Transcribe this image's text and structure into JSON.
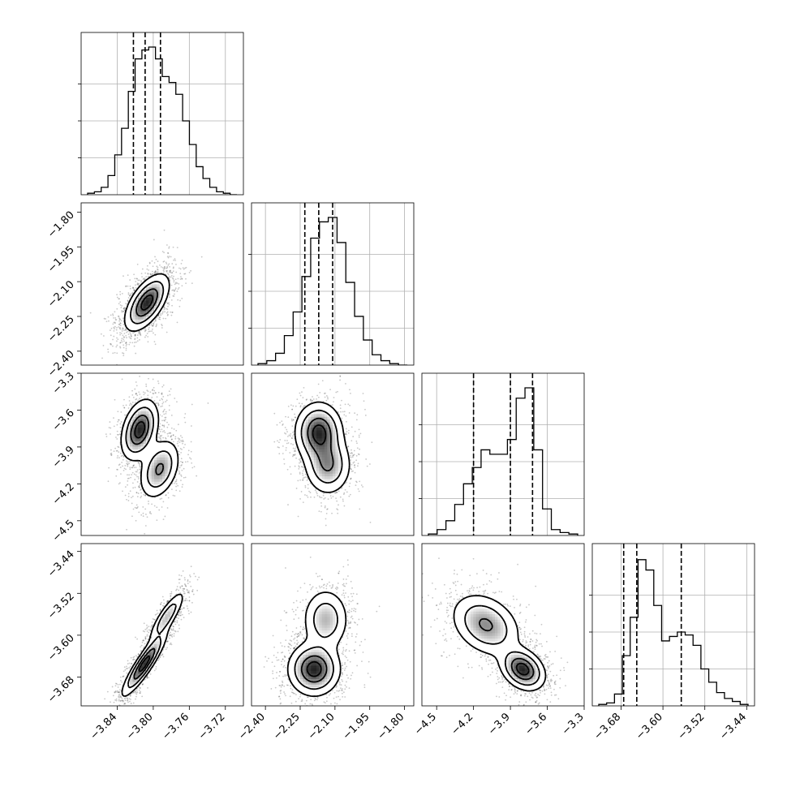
{
  "chart_data": {
    "type": "corner",
    "xlabel": "",
    "ylabel": "",
    "grid": true,
    "colors": {
      "points": "#000000",
      "density_max": "#000000",
      "lines": "#000000"
    },
    "parameters": [
      {
        "range": [
          -3.88,
          -3.7
        ],
        "ticks": [
          -3.84,
          -3.8,
          -3.76,
          -3.72
        ],
        "tick_labels": [
          "−3.84",
          "−3.80",
          "−3.76",
          "−3.72"
        ]
      },
      {
        "range": [
          -2.46,
          -1.76
        ],
        "ticks": [
          -2.4,
          -2.25,
          -2.1,
          -1.95,
          -1.8
        ],
        "tick_labels": [
          "−2.40",
          "−2.25",
          "−2.10",
          "−1.95",
          "−1.80"
        ]
      },
      {
        "range": [
          -4.62,
          -3.3
        ],
        "ticks": [
          -4.5,
          -4.2,
          -3.9,
          -3.6,
          -3.3
        ],
        "tick_labels": [
          "−4.5",
          "−4.2",
          "−3.9",
          "−3.6",
          "−3.3"
        ]
      },
      {
        "range": [
          -3.735,
          -3.425
        ],
        "ticks": [
          -3.68,
          -3.6,
          -3.52,
          -3.44
        ],
        "tick_labels": [
          "−3.68",
          "−3.60",
          "−3.52",
          "−3.44"
        ]
      }
    ],
    "diagonal_histograms": [
      {
        "quantiles": [
          -3.822,
          -3.809,
          -3.792
        ],
        "counts": [
          0.01,
          0.02,
          0.05,
          0.13,
          0.27,
          0.45,
          0.7,
          0.92,
          0.98,
          1.0,
          0.92,
          0.8,
          0.76,
          0.68,
          0.5,
          0.34,
          0.19,
          0.11,
          0.05,
          0.02,
          0.01,
          0.0
        ]
      },
      {
        "quantiles": [
          -2.23,
          -2.17,
          -2.11
        ],
        "counts": [
          0.01,
          0.03,
          0.08,
          0.2,
          0.36,
          0.6,
          0.86,
          0.97,
          1.0,
          0.83,
          0.56,
          0.33,
          0.17,
          0.07,
          0.03,
          0.01,
          0.0
        ]
      },
      {
        "quantiles": [
          -4.2,
          -3.9,
          -3.72
        ],
        "counts": [
          0.01,
          0.04,
          0.1,
          0.21,
          0.35,
          0.46,
          0.58,
          0.55,
          0.55,
          0.65,
          0.93,
          1.0,
          0.58,
          0.18,
          0.04,
          0.02,
          0.01
        ]
      },
      {
        "quantiles": [
          -3.675,
          -3.65,
          -3.565
        ],
        "counts": [
          0.01,
          0.02,
          0.08,
          0.34,
          0.6,
          0.99,
          0.92,
          0.68,
          0.44,
          0.47,
          0.5,
          0.48,
          0.41,
          0.25,
          0.16,
          0.09,
          0.05,
          0.03,
          0.01
        ]
      }
    ],
    "pair_densities": [
      {
        "row": 1,
        "col": 0,
        "modes": [
          {
            "x": -3.807,
            "y": -2.19,
            "sx": 0.012,
            "sy": 0.06,
            "rho": 0.6,
            "w": 1.0
          }
        ]
      },
      {
        "row": 2,
        "col": 0,
        "modes": [
          {
            "x": -3.815,
            "y": -3.76,
            "sx": 0.01,
            "sy": 0.12,
            "rho": 0.35,
            "w": 0.6
          },
          {
            "x": -3.793,
            "y": -4.08,
            "sx": 0.011,
            "sy": 0.12,
            "rho": 0.35,
            "w": 0.4
          }
        ]
      },
      {
        "row": 3,
        "col": 0,
        "modes": [
          {
            "x": -3.81,
            "y": -3.655,
            "sx": 0.012,
            "sy": 0.03,
            "rho": 0.9,
            "w": 0.65
          },
          {
            "x": -3.785,
            "y": -3.565,
            "sx": 0.01,
            "sy": 0.025,
            "rho": 0.85,
            "w": 0.35
          }
        ]
      },
      {
        "row": 2,
        "col": 1,
        "modes": [
          {
            "x": -2.17,
            "y": -3.78,
            "sx": 0.05,
            "sy": 0.12,
            "rho": 0.0,
            "w": 0.6
          },
          {
            "x": -2.13,
            "y": -4.05,
            "sx": 0.05,
            "sy": 0.12,
            "rho": 0.0,
            "w": 0.4
          }
        ]
      },
      {
        "row": 3,
        "col": 1,
        "modes": [
          {
            "x": -2.19,
            "y": -3.665,
            "sx": 0.055,
            "sy": 0.025,
            "rho": 0.0,
            "w": 0.65
          },
          {
            "x": -2.14,
            "y": -3.57,
            "sx": 0.05,
            "sy": 0.03,
            "rho": 0.0,
            "w": 0.35
          }
        ]
      },
      {
        "row": 3,
        "col": 2,
        "modes": [
          {
            "x": -3.8,
            "y": -3.665,
            "sx": 0.09,
            "sy": 0.02,
            "rho": -0.3,
            "w": 0.6
          },
          {
            "x": -4.1,
            "y": -3.58,
            "sx": 0.14,
            "sy": 0.03,
            "rho": -0.3,
            "w": 0.4
          }
        ]
      }
    ]
  }
}
